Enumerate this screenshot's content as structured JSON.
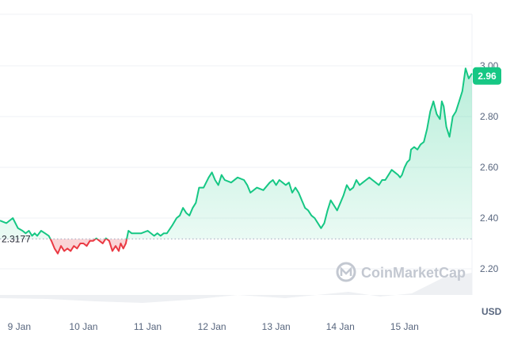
{
  "watermark": {
    "text": "CoinMarketCap",
    "icon": "coinmarketcap-logo-icon"
  },
  "colors": {
    "up": "#16c784",
    "down": "#ea3943",
    "grid": "#eff2f5",
    "tick": "#58667e",
    "reference": "#a6b0c3",
    "volume": "#eef0f3"
  },
  "chart_data": {
    "type": "area",
    "title": "",
    "xlabel": "",
    "ylabel": "USD",
    "y_unit": "USD",
    "ylim": [
      2.1,
      3.0
    ],
    "y_ticks": [
      "2.20",
      "2.40",
      "2.60",
      "2.80",
      "3.00"
    ],
    "x_tick_labels": [
      "9 Jan",
      "10 Jan",
      "11 Jan",
      "12 Jan",
      "13 Jan",
      "14 Jan",
      "15 Jan"
    ],
    "x_range_days": [
      8.7,
      16.05
    ],
    "reference_price": 2.3177,
    "reference_label": "2.3177",
    "current_price": 2.96,
    "current_price_label": "2.96",
    "grid": true,
    "series": [
      {
        "x": [
          8.7,
          8.8,
          8.9,
          8.98,
          9.05,
          9.1,
          9.15,
          9.2,
          9.24,
          9.28,
          9.34,
          9.4,
          9.46,
          9.5,
          9.55,
          9.6,
          9.65,
          9.7,
          9.75,
          9.8,
          9.85,
          9.9,
          9.95,
          10.0,
          10.05,
          10.1,
          10.15,
          10.2,
          10.25,
          10.3,
          10.35,
          10.4,
          10.45,
          10.5,
          10.55,
          10.58,
          10.62,
          10.66,
          10.7,
          10.75,
          10.8,
          10.9,
          11.0,
          11.1,
          11.15,
          11.2,
          11.25,
          11.3,
          11.38,
          11.45,
          11.5,
          11.55,
          11.6,
          11.65,
          11.7,
          11.75,
          11.8,
          11.87,
          11.95,
          12.0,
          12.05,
          12.1,
          12.15,
          12.2,
          12.3,
          12.4,
          12.5,
          12.55,
          12.6,
          12.7,
          12.8,
          12.9,
          12.95,
          13.0,
          13.05,
          13.1,
          13.15,
          13.2,
          13.25,
          13.3,
          13.35,
          13.4,
          13.45,
          13.5,
          13.55,
          13.6,
          13.65,
          13.7,
          13.75,
          13.8,
          13.85,
          13.9,
          13.95,
          14.0,
          14.05,
          14.1,
          14.15,
          14.2,
          14.25,
          14.3,
          14.35,
          14.4,
          14.45,
          14.5,
          14.55,
          14.6,
          14.65,
          14.7,
          14.75,
          14.8,
          14.85,
          14.9,
          14.93,
          14.96,
          15.0,
          15.04,
          15.08,
          15.1,
          15.15,
          15.2,
          15.25,
          15.3,
          15.35,
          15.4,
          15.45,
          15.5,
          15.55,
          15.58,
          15.61,
          15.65,
          15.7,
          15.75,
          15.8,
          15.85,
          15.9,
          15.95,
          16.0,
          16.05
        ],
        "y": [
          2.39,
          2.38,
          2.4,
          2.36,
          2.35,
          2.34,
          2.35,
          2.33,
          2.34,
          2.33,
          2.35,
          2.34,
          2.33,
          2.31,
          2.28,
          2.26,
          2.29,
          2.27,
          2.28,
          2.27,
          2.29,
          2.28,
          2.3,
          2.3,
          2.29,
          2.31,
          2.31,
          2.32,
          2.31,
          2.3,
          2.32,
          2.31,
          2.27,
          2.29,
          2.27,
          2.3,
          2.28,
          2.3,
          2.35,
          2.34,
          2.34,
          2.34,
          2.35,
          2.33,
          2.34,
          2.33,
          2.34,
          2.34,
          2.37,
          2.4,
          2.41,
          2.44,
          2.42,
          2.41,
          2.44,
          2.46,
          2.52,
          2.52,
          2.56,
          2.58,
          2.55,
          2.53,
          2.57,
          2.55,
          2.54,
          2.56,
          2.55,
          2.53,
          2.5,
          2.52,
          2.51,
          2.54,
          2.55,
          2.53,
          2.55,
          2.54,
          2.53,
          2.54,
          2.5,
          2.52,
          2.5,
          2.47,
          2.44,
          2.43,
          2.41,
          2.4,
          2.38,
          2.36,
          2.38,
          2.43,
          2.47,
          2.45,
          2.43,
          2.46,
          2.49,
          2.53,
          2.51,
          2.52,
          2.55,
          2.53,
          2.54,
          2.55,
          2.56,
          2.55,
          2.54,
          2.53,
          2.55,
          2.55,
          2.57,
          2.59,
          2.58,
          2.57,
          2.56,
          2.57,
          2.6,
          2.62,
          2.63,
          2.67,
          2.68,
          2.67,
          2.69,
          2.7,
          2.75,
          2.82,
          2.86,
          2.81,
          2.79,
          2.86,
          2.84,
          2.76,
          2.72,
          2.8,
          2.82,
          2.86,
          2.9,
          2.99,
          2.95,
          2.97
        ]
      }
    ]
  }
}
